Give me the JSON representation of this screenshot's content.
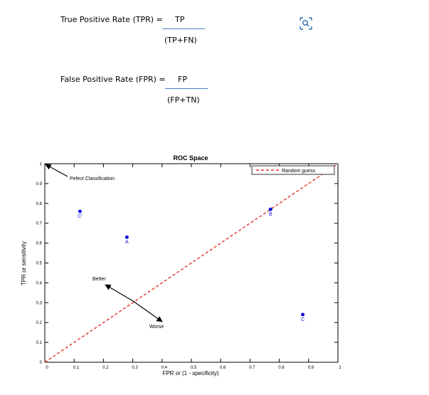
{
  "formulas": {
    "tpr_label": "True Positive Rate (TPR) =",
    "tpr_numerator": "TP",
    "tpr_denominator": "(TP+FN)",
    "fpr_label": "False Positive Rate (FPR) =",
    "fpr_numerator": "FP",
    "fpr_denominator": "(FP+TN)"
  },
  "toolbar": {
    "icon": "visual-search-icon",
    "icon_color": "#2b6cb0"
  },
  "chart_data": {
    "type": "scatter",
    "title": "ROC Space",
    "xlabel": "FPR or (1 - specificity)",
    "ylabel": "TPR or sensitivity",
    "xlim": [
      0,
      1
    ],
    "ylim": [
      0,
      1
    ],
    "xticks": [
      "0",
      "0.1",
      "0.2",
      "0.3",
      "0.4",
      "0.5",
      "0.6",
      "0.7",
      "0.8",
      "0.9",
      "1"
    ],
    "yticks": [
      "0",
      "0.1",
      "0.2",
      "0.3",
      "0.4",
      "0.5",
      "0.6",
      "0.7",
      "0.8",
      "0.9",
      "1"
    ],
    "grid": false,
    "legend": {
      "position": "top-right",
      "entries": [
        "Random guess"
      ]
    },
    "series": [
      {
        "name": "Random guess",
        "type": "line",
        "style": "dashed",
        "color": "#e0302a",
        "x": [
          0,
          1
        ],
        "y": [
          0,
          1
        ]
      }
    ],
    "points": [
      {
        "label": "C'",
        "x": 0.12,
        "y": 0.76,
        "color": "#1010e0"
      },
      {
        "label": "A",
        "x": 0.28,
        "y": 0.63,
        "color": "#1010e0"
      },
      {
        "label": "B",
        "x": 0.77,
        "y": 0.77,
        "color": "#1010e0"
      },
      {
        "label": "C",
        "x": 0.88,
        "y": 0.24,
        "color": "#1010e0"
      }
    ],
    "annotations": [
      {
        "text": "Pefect Classification",
        "x": 0.0,
        "y": 1.0
      },
      {
        "text": "Better",
        "x": 0.2,
        "y": 0.4
      },
      {
        "text": "Worse",
        "x": 0.4,
        "y": 0.2
      }
    ]
  }
}
